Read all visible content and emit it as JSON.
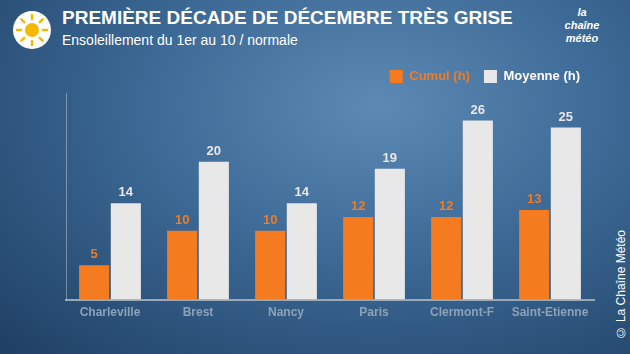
{
  "chart_data": {
    "type": "bar",
    "title": "PREMIÈRE DÉCADE DE DÉCEMBRE TRÈS GRISE",
    "subtitle": "Ensoleillement du 1er au 10 / normale",
    "annotations": [
      "la chaîne météo",
      "© La Chaîne Météo"
    ],
    "categories": [
      "Charleville",
      "Brest",
      "Nancy",
      "Paris",
      "Clermont-F",
      "Saint-Etienne"
    ],
    "series": [
      {
        "name": "Cumul (h)",
        "color": "#f47b20",
        "values": [
          5,
          10,
          10,
          12,
          12,
          13
        ]
      },
      {
        "name": "Moyenne (h)",
        "color": "#e8e8e8",
        "values": [
          14,
          20,
          14,
          19,
          26,
          25
        ]
      }
    ],
    "ylim": [
      0,
      30
    ],
    "grid": false,
    "legend": "top-right",
    "data_labels": true,
    "tick_labels": "x"
  }
}
